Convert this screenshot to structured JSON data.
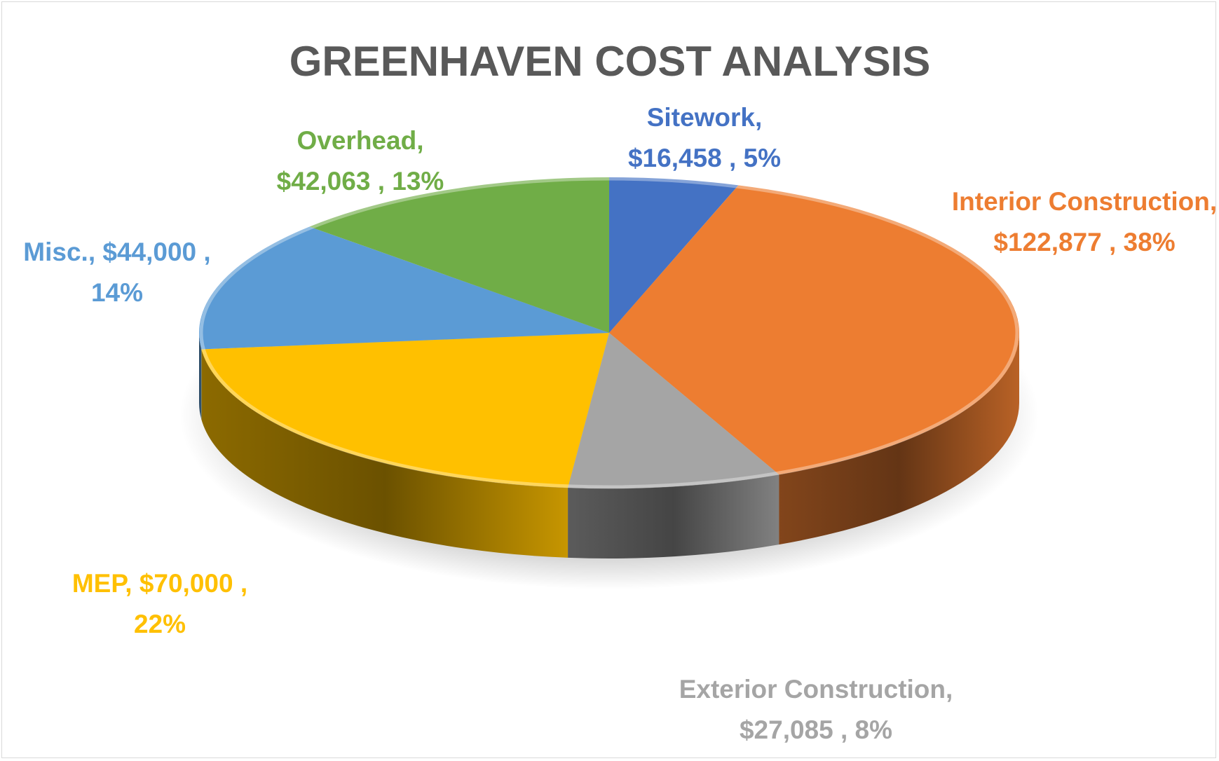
{
  "chart_data": {
    "type": "pie",
    "style": "3d-pie",
    "title": "GREENHAVEN COST ANALYSIS",
    "legend": "none",
    "slices": [
      {
        "label": "Sitework",
        "value": 16458,
        "percent": 5,
        "color": "#4472c4",
        "label_lines": [
          "Sitework,",
          "$16,458 , 5%"
        ]
      },
      {
        "label": "Interior Construction",
        "value": 122877,
        "percent": 38,
        "color": "#ed7d31",
        "label_lines": [
          "Interior Construction,",
          "$122,877 , 38%"
        ]
      },
      {
        "label": "Exterior Construction",
        "value": 27085,
        "percent": 8,
        "color": "#a5a5a5",
        "label_lines": [
          "Exterior Construction,",
          "$27,085 , 8%"
        ]
      },
      {
        "label": "MEP",
        "value": 70000,
        "percent": 22,
        "color": "#ffc000",
        "label_lines": [
          "MEP,  $70,000 ,",
          "22%"
        ]
      },
      {
        "label": "Misc.",
        "value": 44000,
        "percent": 14,
        "color": "#5b9bd5",
        "label_lines": [
          "Misc.,  $44,000 ,",
          "14%"
        ]
      },
      {
        "label": "Overhead",
        "value": 42063,
        "percent": 13,
        "color": "#70ad47",
        "label_lines": [
          "Overhead,",
          "$42,063 , 13%"
        ]
      }
    ]
  }
}
